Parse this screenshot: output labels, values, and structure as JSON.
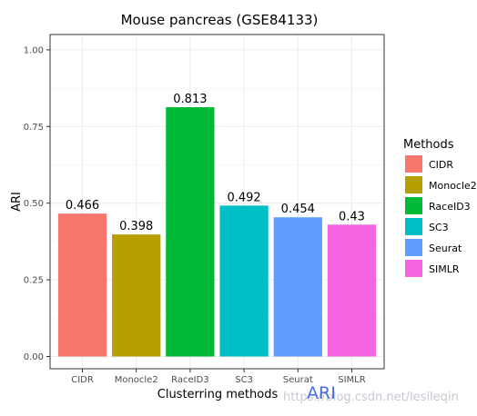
{
  "chart_data": {
    "type": "bar",
    "title": "Mouse pancreas (GSE84133)",
    "xlabel": "Clusterring methods",
    "ylabel": "ARI",
    "categories": [
      "CIDR",
      "Monocle2",
      "RaceID3",
      "SC3",
      "Seurat",
      "SIMLR"
    ],
    "values": [
      0.466,
      0.398,
      0.813,
      0.492,
      0.454,
      0.43
    ],
    "value_labels": [
      "0.466",
      "0.398",
      "0.813",
      "0.492",
      "0.454",
      "0.43"
    ],
    "colors": [
      "#F8766D",
      "#B79F00",
      "#00BA38",
      "#00BFC4",
      "#619CFF",
      "#F564E3"
    ],
    "ylim": [
      -0.04,
      1.05
    ],
    "yticks": [
      0,
      0.25,
      0.5,
      0.75,
      1
    ],
    "ytick_labels": [
      "0.00",
      "0.25",
      "0.50",
      "0.75",
      "1.00"
    ],
    "grid": true,
    "legend": {
      "title": "Methods",
      "position": "right",
      "labels": [
        "CIDR",
        "Monocle2",
        "RaceID3",
        "SC3",
        "Seurat",
        "SIMLR"
      ]
    }
  },
  "watermark": {
    "url": "https://blog.csdn.net/lesileqin",
    "overlay_text": "ARI"
  }
}
